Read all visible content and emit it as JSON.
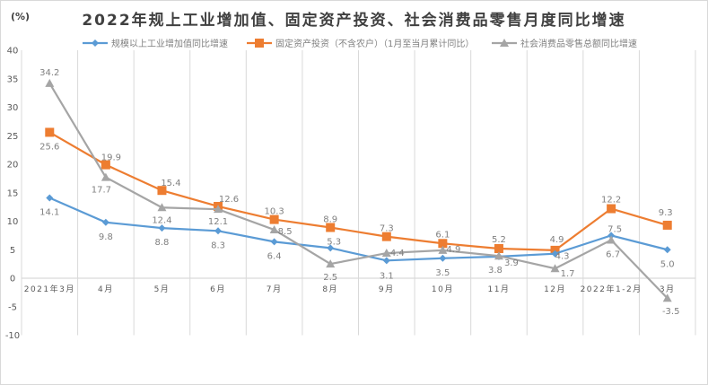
{
  "header": {
    "title": "2022年规上工业增加值、固定资产投资、社会消费品零售月度同比增速",
    "unit": "(%)"
  },
  "legend": [
    {
      "label": "规模以上工业增加值同比增速",
      "color": "#5b9bd5",
      "marker": "diamond"
    },
    {
      "label": "固定资产投资（不含农户）（1月至当月累计同比）",
      "color": "#ed7d31",
      "marker": "square"
    },
    {
      "label": "社会消费品零售总额同比增速",
      "color": "#a5a5a5",
      "marker": "triangle"
    }
  ],
  "chart_data": {
    "type": "line",
    "title": "2022年规上工业增加值、固定资产投资、社会消费品零售月度同比增速",
    "xlabel": "",
    "ylabel": "(%)",
    "ylim": [
      -10,
      40
    ],
    "yticks": [
      40,
      35,
      30,
      25,
      20,
      15,
      10,
      5,
      0,
      -5,
      -10
    ],
    "grid": "vertical",
    "legend_position": "top",
    "categories": [
      "2021年3月",
      "4月",
      "5月",
      "6月",
      "7月",
      "8月",
      "9月",
      "10月",
      "11月",
      "12月",
      "2022年1-2月",
      "3月"
    ],
    "series": [
      {
        "name": "规模以上工业增加值同比增速",
        "color": "#5b9bd5",
        "values": [
          14.1,
          9.8,
          8.8,
          8.3,
          6.4,
          5.3,
          3.1,
          3.5,
          3.8,
          4.3,
          7.5,
          5.0
        ]
      },
      {
        "name": "固定资产投资（不含农户）（1月至当月累计同比）",
        "color": "#ed7d31",
        "values": [
          25.6,
          19.9,
          15.4,
          12.6,
          10.3,
          8.9,
          7.3,
          6.1,
          5.2,
          4.9,
          12.2,
          9.3
        ]
      },
      {
        "name": "社会消费品零售总额同比增速",
        "color": "#a5a5a5",
        "values": [
          34.2,
          17.7,
          12.4,
          12.1,
          8.5,
          2.5,
          4.4,
          4.9,
          3.9,
          1.7,
          6.7,
          -3.5
        ]
      }
    ]
  }
}
